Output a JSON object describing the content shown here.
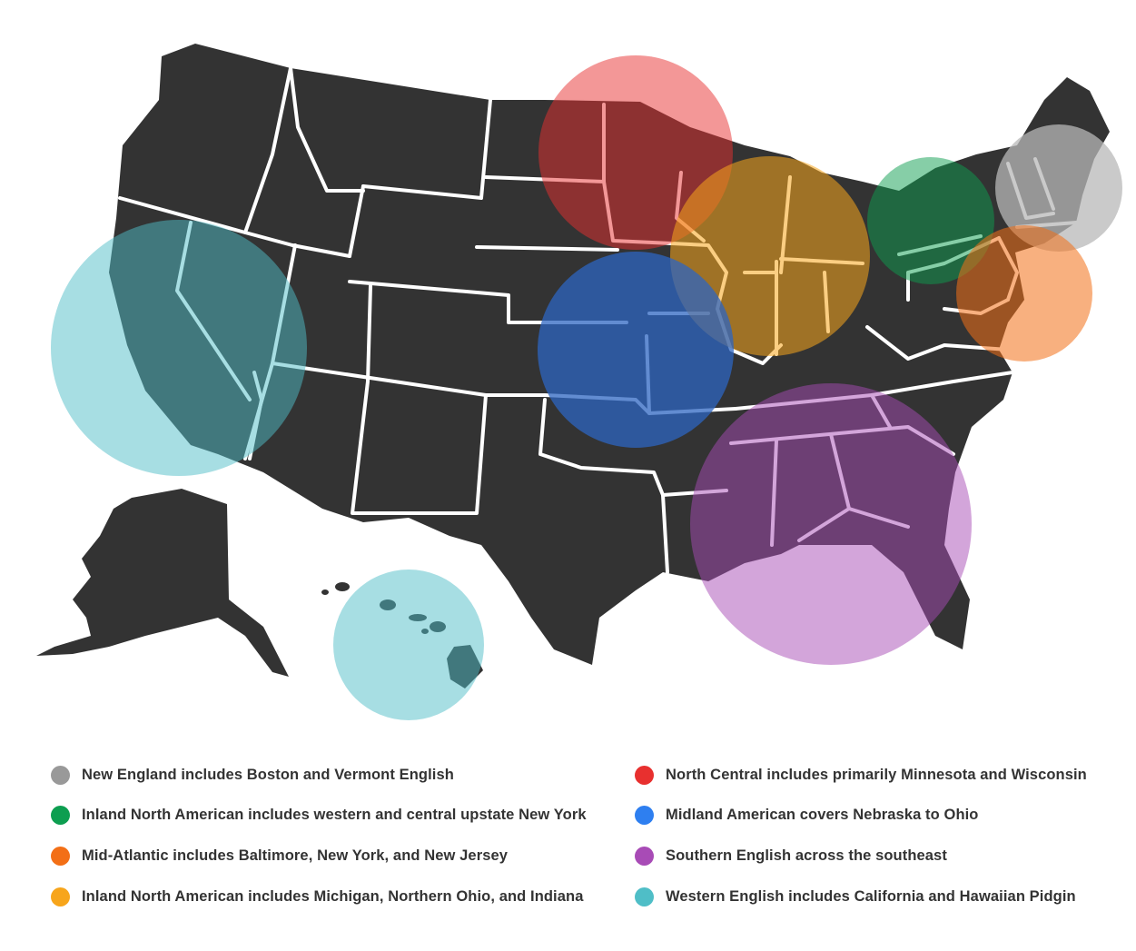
{
  "colors": {
    "land": "#333333",
    "border": "#ffffff",
    "legend_text": "#333333"
  },
  "regions": [
    {
      "id": "new-england",
      "label": "New England includes Boston and Vermont English",
      "color": "#999999",
      "bubble_color": "#c2c2c2"
    },
    {
      "id": "inland-north-ny",
      "label": "Inland North American includes western and central upstate New York",
      "color": "#0d9e50",
      "bubble_color": "#57c98f"
    },
    {
      "id": "mid-atlantic",
      "label": "Mid-Atlantic includes Baltimore, New York, and New Jersey",
      "color": "#f36f16",
      "bubble_color": "#ffad6e"
    },
    {
      "id": "inland-north-mi",
      "label": "Inland North American includes Michigan, Northern Ohio, and Indiana",
      "color": "#f7a51b",
      "bubble_color": "#f6b73c"
    },
    {
      "id": "north-central",
      "label": "North Central includes primarily Minnesota and Wisconsin",
      "color": "#e8302f",
      "bubble_color": "#f08784"
    },
    {
      "id": "midland",
      "label": "Midland American covers Nebraska to Ohio",
      "color": "#2e7ff0",
      "bubble_color": "#2d5aa8"
    },
    {
      "id": "southern",
      "label": "Southern English across the southeast",
      "color": "#a84bb6",
      "bubble_color": "#c98ad3"
    },
    {
      "id": "western",
      "label": "Western English includes California and Hawaiian Pidgin",
      "color": "#4fbec7",
      "bubble_color": "#8fd4da"
    }
  ]
}
